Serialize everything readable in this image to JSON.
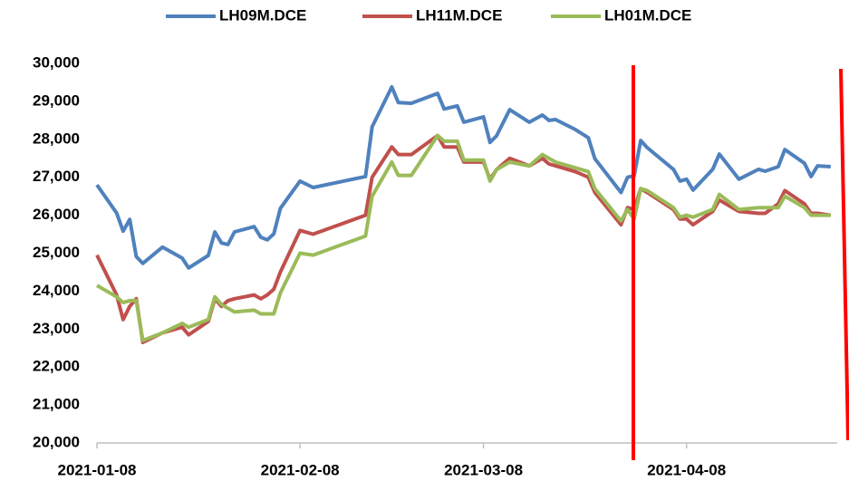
{
  "chart_data": {
    "type": "line",
    "x": [
      "2021-01-08",
      "2021-01-11",
      "2021-01-12",
      "2021-01-13",
      "2021-01-14",
      "2021-01-15",
      "2021-01-18",
      "2021-01-21",
      "2021-01-22",
      "2021-01-25",
      "2021-01-26",
      "2021-01-27",
      "2021-01-28",
      "2021-01-29",
      "2021-02-01",
      "2021-02-02",
      "2021-02-03",
      "2021-02-04",
      "2021-02-05",
      "2021-02-08",
      "2021-02-10",
      "2021-02-18",
      "2021-02-19",
      "2021-02-22",
      "2021-02-23",
      "2021-02-25",
      "2021-03-01",
      "2021-03-02",
      "2021-03-04",
      "2021-03-05",
      "2021-03-08",
      "2021-03-09",
      "2021-03-10",
      "2021-03-12",
      "2021-03-15",
      "2021-03-17",
      "2021-03-18",
      "2021-03-19",
      "2021-03-22",
      "2021-03-24",
      "2021-03-25",
      "2021-03-29",
      "2021-03-30",
      "2021-03-31",
      "2021-04-01",
      "2021-04-02",
      "2021-04-06",
      "2021-04-07",
      "2021-04-08",
      "2021-04-09",
      "2021-04-12",
      "2021-04-13",
      "2021-04-16",
      "2021-04-19",
      "2021-04-20",
      "2021-04-22",
      "2021-04-23",
      "2021-04-26",
      "2021-04-27",
      "2021-04-28",
      "2021-04-30"
    ],
    "series": [
      {
        "name": "LH09M.DCE",
        "color": "#4f81bd",
        "values": [
          26800,
          26060,
          25580,
          25890,
          24910,
          24730,
          25160,
          24870,
          24610,
          24940,
          25560,
          25270,
          25230,
          25560,
          25700,
          25420,
          25350,
          25510,
          26180,
          26900,
          26730,
          27020,
          28330,
          29380,
          28970,
          28950,
          29210,
          28800,
          28880,
          28450,
          28590,
          27920,
          28090,
          28780,
          28450,
          28640,
          28500,
          28520,
          28260,
          28040,
          27490,
          26600,
          27000,
          27040,
          27970,
          27780,
          27210,
          26900,
          26950,
          26660,
          27210,
          27610,
          26950,
          27210,
          27160,
          27280,
          27730,
          27370,
          27020,
          27300,
          27280
        ]
      },
      {
        "name": "LH11M.DCE",
        "color": "#c0504d",
        "values": [
          24950,
          23900,
          23250,
          23600,
          23800,
          22650,
          22900,
          23050,
          22850,
          23200,
          23800,
          23600,
          23750,
          23800,
          23900,
          23800,
          23900,
          24050,
          24500,
          25600,
          25500,
          26000,
          27000,
          27800,
          27600,
          27600,
          28100,
          27800,
          27800,
          27400,
          27400,
          26950,
          27200,
          27500,
          27300,
          27500,
          27350,
          27300,
          27150,
          27000,
          26600,
          25750,
          26200,
          26150,
          26700,
          26600,
          26150,
          25900,
          25900,
          25750,
          26100,
          26400,
          26100,
          26050,
          26050,
          26300,
          26650,
          26300,
          26050,
          26050,
          26000
        ]
      },
      {
        "name": "LH01M.DCE",
        "color": "#9bbb59",
        "values": [
          24150,
          23850,
          23700,
          23750,
          23750,
          22700,
          22900,
          23150,
          23050,
          23250,
          23850,
          23650,
          23550,
          23450,
          23500,
          23400,
          23400,
          23400,
          23950,
          25000,
          24950,
          25450,
          26500,
          27400,
          27050,
          27050,
          28100,
          27950,
          27950,
          27450,
          27450,
          26900,
          27200,
          27400,
          27300,
          27600,
          27500,
          27400,
          27250,
          27150,
          26700,
          25850,
          26150,
          25900,
          26700,
          26650,
          26200,
          25950,
          26000,
          25950,
          26150,
          26550,
          26150,
          26200,
          26200,
          26200,
          26500,
          26200,
          26000,
          26000,
          26000
        ]
      }
    ],
    "xlim": [
      "2021-01-08",
      "2021-05-01"
    ],
    "xticks": [
      "2021-01-08",
      "2021-02-08",
      "2021-03-08",
      "2021-04-08"
    ],
    "ylim": [
      20000,
      30000
    ],
    "yticks": [
      {
        "value": 20000,
        "label": "20,000"
      },
      {
        "value": 21000,
        "label": "21,000"
      },
      {
        "value": 22000,
        "label": "22,000"
      },
      {
        "value": 23000,
        "label": "23,000"
      },
      {
        "value": 24000,
        "label": "24,000"
      },
      {
        "value": 25000,
        "label": "25,000"
      },
      {
        "value": 26000,
        "label": "26,000"
      },
      {
        "value": 27000,
        "label": "27,000"
      },
      {
        "value": 28000,
        "label": "28,000"
      },
      {
        "value": 29000,
        "label": "29,000"
      },
      {
        "value": 30000,
        "label": "30,000"
      }
    ],
    "grid": false,
    "legend": "top"
  }
}
